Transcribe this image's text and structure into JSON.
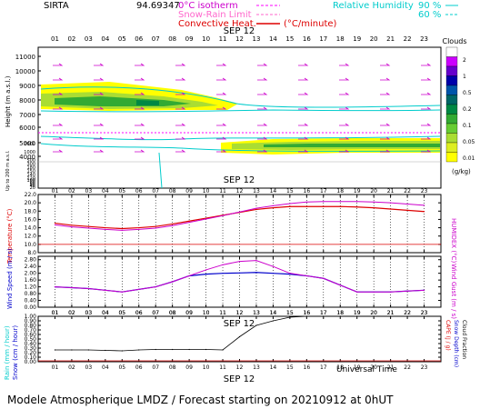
{
  "header": {
    "site": "SIRTA",
    "coords": "94.69347",
    "legend_0c": "0°C isotherm",
    "legend_snow": "Snow-Rain Limit",
    "legend_conv": "Convective Heat.",
    "conv_units": "(°C/minute)",
    "rh_label": "Relative Humidity",
    "rh_90": "90 %",
    "rh_60": "60 %"
  },
  "footer": {
    "universal_time": "Universal Time",
    "caption": "Modele Atmospherique LMDZ / Forecast starting on 20210912 at 0hUT"
  },
  "colors": {
    "temperature": "#dd0000",
    "humidex": "#cc00cc",
    "wind_speed": "#0000cc",
    "wind_gust": "#cc00cc",
    "cloud_fraction": "#000000",
    "rh_line": "#00cccc",
    "dashed_line": "#ff00ff",
    "grid": "#000000"
  },
  "chart_data": [
    {
      "type": "heatmap",
      "name": "clouds",
      "date_label": "SEP 12",
      "x_ticks": [
        "01",
        "02",
        "03",
        "04",
        "05",
        "06",
        "07",
        "08",
        "09",
        "10",
        "11",
        "12",
        "13",
        "14",
        "15",
        "16",
        "17",
        "18",
        "19",
        "20",
        "21",
        "22",
        "23"
      ],
      "y_label_upper": "Height  (m a.s.l.)",
      "y_label_lower": "Up to 200 m a.s.l.",
      "y_ticks_upper": [
        "11000",
        "10000",
        "9000",
        "8000",
        "7000",
        "6000",
        "5000",
        "4000"
      ],
      "y_ticks_lower": [
        "2000",
        "1000",
        "500",
        "300",
        "180",
        "150",
        "140",
        "120",
        "100",
        "80",
        "60",
        "40",
        "20"
      ],
      "colorbar_title": "Clouds",
      "colorbar_ticks": [
        "2",
        "1",
        "0.5",
        "0.2",
        "0.1",
        "0.05",
        "0.01"
      ],
      "colorbar_units": "(g/kg)",
      "colorbar_colors": [
        "#ffffff",
        "#cc00ff",
        "#6600cc",
        "#0000aa",
        "#0055aa",
        "#006666",
        "#008844",
        "#33aa33",
        "#66cc33",
        "#aadd33",
        "#ddee22",
        "#ffff00"
      ]
    },
    {
      "type": "line",
      "name": "temperature",
      "date_label": "SEP 12",
      "x_ticks": [
        "01",
        "02",
        "03",
        "04",
        "05",
        "06",
        "07",
        "08",
        "09",
        "10",
        "11",
        "12",
        "13",
        "14",
        "15",
        "16",
        "17",
        "18",
        "19",
        "20",
        "21",
        "22",
        "23"
      ],
      "y_ticks": [
        "22.0",
        "20.0",
        "18.0",
        "16.0",
        "14.0",
        "12.0",
        "10.0",
        "8.0"
      ],
      "ylim": [
        8,
        22
      ],
      "ylabel_left": "Temperature (°C)",
      "ylabel_right": "HUMIDEX (°C)",
      "series": [
        {
          "name": "Temperature",
          "values": [
            15.1,
            14.6,
            14.3,
            14.0,
            13.8,
            14.0,
            14.3,
            14.9,
            15.6,
            16.3,
            17.0,
            17.7,
            18.4,
            18.8,
            19.1,
            19.1,
            19.1,
            19.1,
            19.0,
            18.8,
            18.5,
            18.2,
            17.9
          ]
        },
        {
          "name": "Humidex",
          "values": [
            14.7,
            14.2,
            13.9,
            13.6,
            13.4,
            13.6,
            13.9,
            14.5,
            15.3,
            16.1,
            16.9,
            17.8,
            18.7,
            19.3,
            19.8,
            20.2,
            20.3,
            20.3,
            20.3,
            20.2,
            20.0,
            19.7,
            19.4
          ]
        }
      ],
      "reference_line": 10
    },
    {
      "type": "line",
      "name": "wind",
      "x_ticks": [
        "01",
        "02",
        "03",
        "04",
        "05",
        "06",
        "07",
        "08",
        "09",
        "10",
        "11",
        "12",
        "13",
        "14",
        "15",
        "16",
        "17",
        "18",
        "19",
        "20",
        "21",
        "22",
        "23"
      ],
      "y_ticks": [
        "2.80",
        "2.40",
        "2.00",
        "1.60",
        "1.20",
        "0.80",
        "0.40",
        "0.00"
      ],
      "ylim": [
        0,
        3
      ],
      "ylabel_left": "Wind Speed (m / s)",
      "ylabel_right": "Wind Gust (m / s)",
      "series": [
        {
          "name": "Wind Speed",
          "values": [
            1.2,
            1.15,
            1.1,
            1.0,
            0.9,
            1.05,
            1.2,
            1.5,
            1.85,
            1.95,
            2.0,
            2.02,
            2.05,
            2.0,
            1.95,
            1.85,
            1.7,
            1.3,
            0.9,
            0.9,
            0.9,
            0.95,
            1.0
          ]
        },
        {
          "name": "Wind Gust",
          "values": [
            1.2,
            1.15,
            1.1,
            1.0,
            0.9,
            1.05,
            1.2,
            1.5,
            1.85,
            2.2,
            2.5,
            2.7,
            2.75,
            2.4,
            2.0,
            1.85,
            1.7,
            1.3,
            0.9,
            0.9,
            0.9,
            0.95,
            1.0
          ]
        }
      ]
    },
    {
      "type": "line",
      "name": "precipitation",
      "date_label": "SEP 12",
      "x_ticks": [
        "01",
        "02",
        "03",
        "04",
        "05",
        "06",
        "07",
        "08",
        "09",
        "10",
        "11",
        "12",
        "13",
        "14",
        "15",
        "16",
        "17",
        "18",
        "19",
        "20",
        "21",
        "22",
        "23"
      ],
      "y_ticks": [
        "1.00",
        "0.90",
        "0.80",
        "0.70",
        "0.60",
        "0.50",
        "0.40",
        "0.30",
        "0.20",
        "0.10",
        "0.00"
      ],
      "ylim": [
        0,
        1
      ],
      "ylabel_left_1": "Rain (mm / hour)",
      "ylabel_left_2": "Snow (cm / hour)",
      "ylabel_right_1": "CAPE (J / g)",
      "ylabel_right_2": "Snow Depth (cm)",
      "ylabel_right_3": "Cloud Fraction",
      "series": [
        {
          "name": "Cloud Fraction",
          "values": [
            0.26,
            0.26,
            0.26,
            0.25,
            0.24,
            0.26,
            0.27,
            0.27,
            0.27,
            0.27,
            0.26,
            0.55,
            0.8,
            0.9,
            0.98,
            1.0,
            1.0,
            1.0,
            1.0,
            1.0,
            1.0,
            1.0,
            1.0
          ]
        }
      ]
    }
  ]
}
